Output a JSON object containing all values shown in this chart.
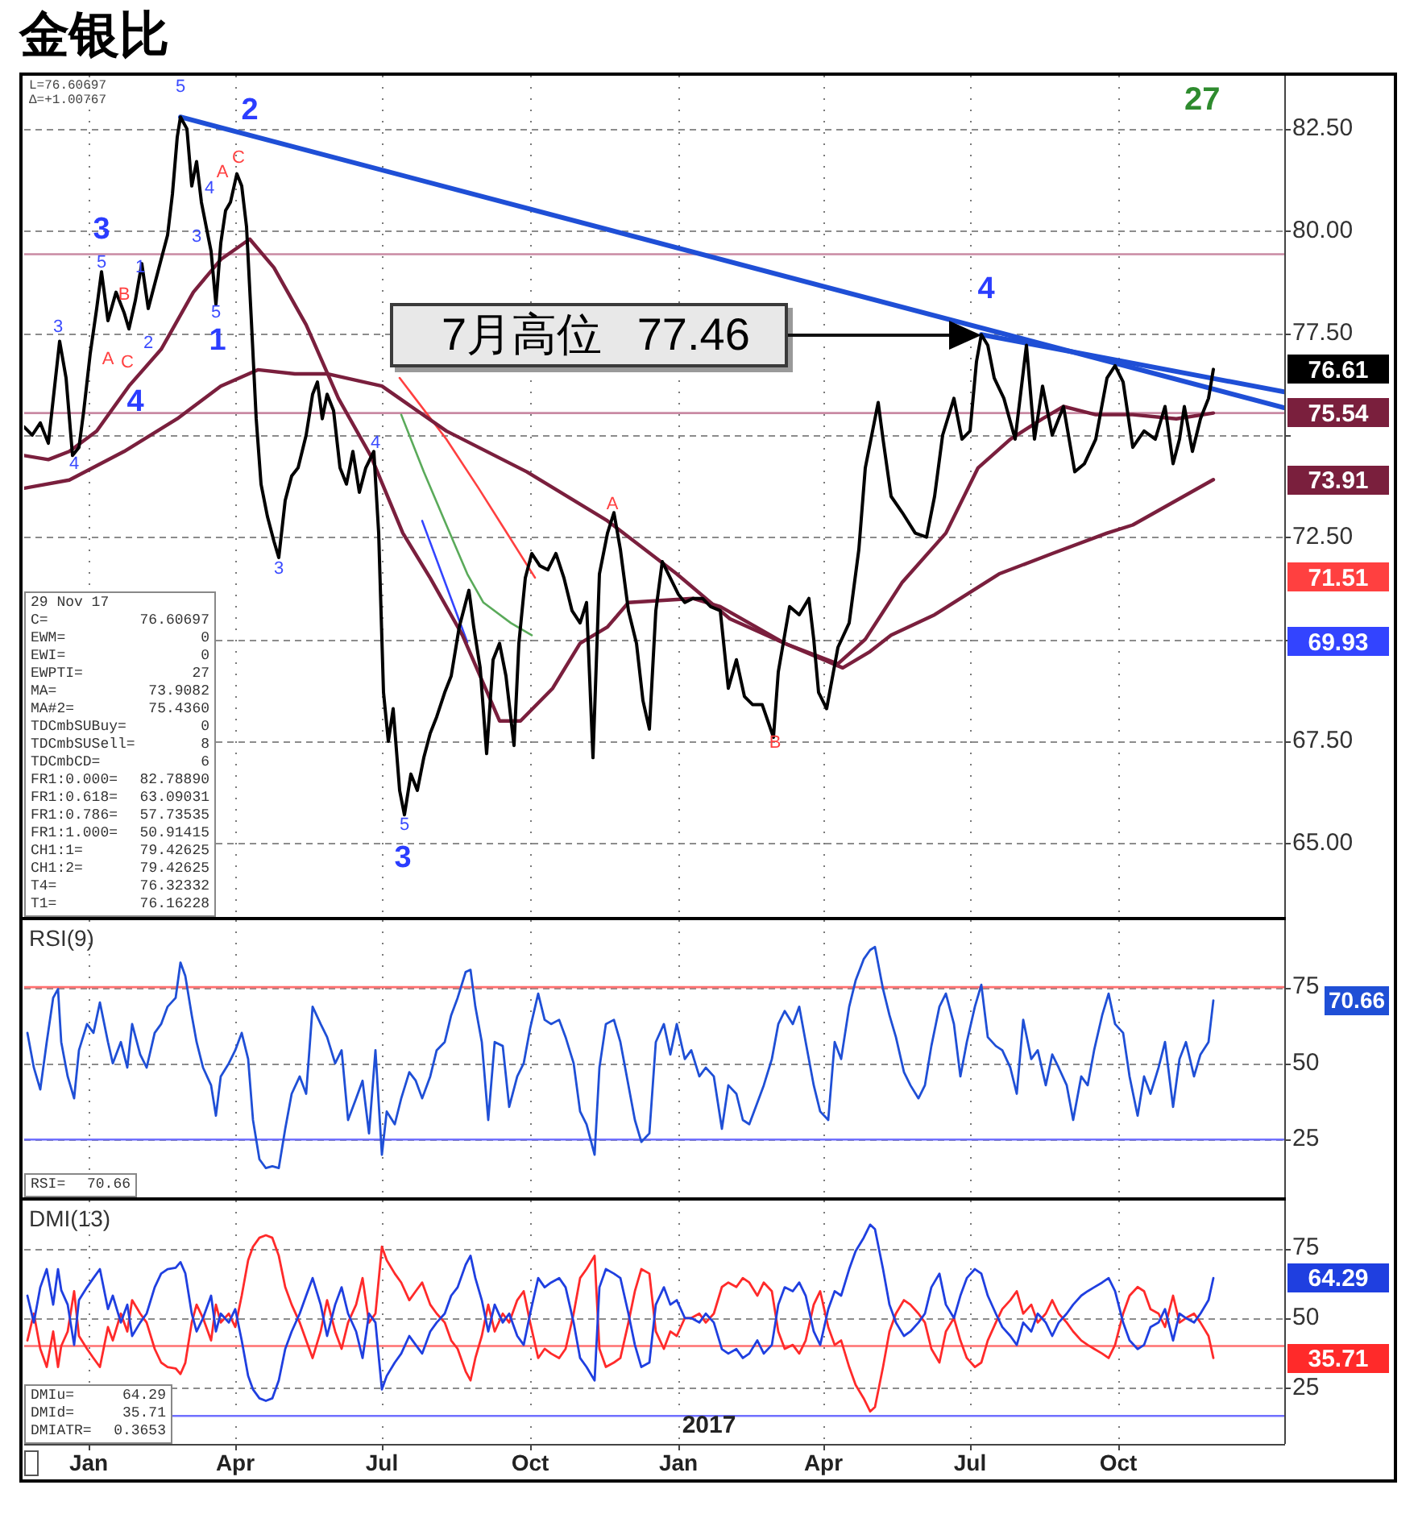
{
  "chart_data": [
    {
      "type": "line",
      "title": "金银比",
      "tick_labels": "y",
      "grid": true,
      "xlim": [
        "2015-11-22",
        "2018-01-12"
      ],
      "xticks": [
        {
          "value": "2016-01-01",
          "label": null
        },
        {
          "value": "2016-04-01",
          "label": null
        },
        {
          "value": "2016-07-01",
          "label": null
        },
        {
          "value": "2016-10-01",
          "label": null
        },
        {
          "value": "2017-01-01",
          "label": null
        },
        {
          "value": "2017-04-01",
          "label": null
        },
        {
          "value": "2017-07-01",
          "label": null
        },
        {
          "value": "2017-10-01",
          "label": null
        }
      ],
      "ylim": [
        63.2,
        83.8
      ],
      "yticks": [
        {
          "value": 65,
          "label": "65.00"
        },
        {
          "value": 67.5,
          "label": "67.50"
        },
        {
          "value": 70,
          "label": null
        },
        {
          "value": 72.5,
          "label": "72.50"
        },
        {
          "value": 75,
          "label": null
        },
        {
          "value": 77.5,
          "label": "77.50"
        },
        {
          "value": 80,
          "label": "80.00"
        },
        {
          "value": 82.5,
          "label": "82.50"
        }
      ],
      "series": [
        {
          "color": "#000000",
          "x": [
            "2015-11-22",
            "2015-11-27",
            "2015-12-02",
            "2015-12-07",
            "2015-12-14",
            "2015-12-18",
            "2015-12-22",
            "2015-12-26",
            "2015-12-29",
            "2016-01-02",
            "2016-01-06",
            "2016-01-09",
            "2016-01-13",
            "2016-01-18",
            "2016-01-23",
            "2016-01-26",
            "2016-01-30",
            "2016-02-03",
            "2016-02-07",
            "2016-02-11",
            "2016-02-15",
            "2016-02-19",
            "2016-02-22",
            "2016-02-25",
            "2016-02-27",
            "2016-03-02",
            "2016-03-05",
            "2016-03-08",
            "2016-03-11",
            "2016-03-14",
            "2016-03-17",
            "2016-03-20",
            "2016-03-23",
            "2016-03-26",
            "2016-03-29",
            "2016-04-02",
            "2016-04-05",
            "2016-04-08",
            "2016-04-11",
            "2016-04-14",
            "2016-04-17",
            "2016-04-21",
            "2016-04-25",
            "2016-04-28",
            "2016-05-02",
            "2016-05-06",
            "2016-05-10",
            "2016-05-15",
            "2016-05-19",
            "2016-05-22",
            "2016-05-25",
            "2016-05-28",
            "2016-06-01",
            "2016-06-05",
            "2016-06-09",
            "2016-06-13",
            "2016-06-17",
            "2016-06-21",
            "2016-06-26",
            "2016-06-29",
            "2016-07-02",
            "2016-07-05",
            "2016-07-08",
            "2016-07-12",
            "2016-07-15",
            "2016-07-19",
            "2016-07-23",
            "2016-07-27",
            "2016-07-31",
            "2016-08-04",
            "2016-08-09",
            "2016-08-13",
            "2016-08-18",
            "2016-08-24",
            "2016-08-27",
            "2016-08-31",
            "2016-09-04",
            "2016-09-08",
            "2016-09-12",
            "2016-09-16",
            "2016-09-21",
            "2016-09-24",
            "2016-09-28",
            "2016-10-02",
            "2016-10-07",
            "2016-10-12",
            "2016-10-17",
            "2016-10-22",
            "2016-10-27",
            "2016-11-01",
            "2016-11-05",
            "2016-11-09",
            "2016-11-13",
            "2016-11-18",
            "2016-11-22",
            "2016-11-26",
            "2016-12-01",
            "2016-12-06",
            "2016-12-10",
            "2016-12-14",
            "2016-12-18",
            "2016-12-22",
            "2016-12-27",
            "2017-01-01",
            "2017-01-05",
            "2017-01-10",
            "2017-01-16",
            "2017-01-21",
            "2017-01-27",
            "2017-02-01",
            "2017-02-06",
            "2017-02-11",
            "2017-02-16",
            "2017-02-22",
            "2017-03-01",
            "2017-03-04",
            "2017-03-11",
            "2017-03-17",
            "2017-03-23",
            "2017-03-26",
            "2017-03-29",
            "2017-04-03",
            "2017-04-10",
            "2017-04-17",
            "2017-04-23",
            "2017-04-27",
            "2017-05-01",
            "2017-05-05",
            "2017-05-08",
            "2017-05-13",
            "2017-05-20",
            "2017-05-28",
            "2017-06-04",
            "2017-06-09",
            "2017-06-14",
            "2017-06-21",
            "2017-06-26",
            "2017-07-01",
            "2017-07-05",
            "2017-07-08",
            "2017-07-12",
            "2017-07-16",
            "2017-07-22",
            "2017-07-29",
            "2017-08-05",
            "2017-08-10",
            "2017-08-15",
            "2017-08-21",
            "2017-08-28",
            "2017-09-04",
            "2017-09-10",
            "2017-09-17",
            "2017-09-24",
            "2017-09-29",
            "2017-10-04",
            "2017-10-10",
            "2017-10-17",
            "2017-10-24",
            "2017-10-30",
            "2017-11-04",
            "2017-11-08",
            "2017-11-11",
            "2017-11-16",
            "2017-11-21",
            "2017-11-26",
            "2017-11-29"
          ],
          "values": [
            75.2,
            75.0,
            75.3,
            74.8,
            77.3,
            76.4,
            74.5,
            74.7,
            75.6,
            77.0,
            78.1,
            79.0,
            77.8,
            78.5,
            78.0,
            77.6,
            78.3,
            79.2,
            78.1,
            78.7,
            79.3,
            79.9,
            80.9,
            82.3,
            82.79,
            82.5,
            81.1,
            81.7,
            80.7,
            80.1,
            79.5,
            78.2,
            79.7,
            80.5,
            80.7,
            81.4,
            81.1,
            80.1,
            77.8,
            75.4,
            73.8,
            73.0,
            72.4,
            72.0,
            73.4,
            74.0,
            74.2,
            75.0,
            76.0,
            76.3,
            75.4,
            76.0,
            75.6,
            74.2,
            73.8,
            74.6,
            73.6,
            74.2,
            74.6,
            72.6,
            68.7,
            67.5,
            68.3,
            66.3,
            65.7,
            66.7,
            66.3,
            67.1,
            67.7,
            68.1,
            68.7,
            69.1,
            70.3,
            71.2,
            70.3,
            69.3,
            67.2,
            69.5,
            69.9,
            69.1,
            67.4,
            69.9,
            71.5,
            72.1,
            71.8,
            71.7,
            72.1,
            71.5,
            70.7,
            70.4,
            70.9,
            67.1,
            71.6,
            72.6,
            73.1,
            72.2,
            70.7,
            69.9,
            68.5,
            67.8,
            70.7,
            71.9,
            71.5,
            71.1,
            70.9,
            71.0,
            71.0,
            70.8,
            70.7,
            68.8,
            69.5,
            68.6,
            68.4,
            68.4,
            67.6,
            69.2,
            70.8,
            70.6,
            71.0,
            70.0,
            68.7,
            68.3,
            69.8,
            70.4,
            72.2,
            74.2,
            75.0,
            75.8,
            74.9,
            73.5,
            73.1,
            72.6,
            72.5,
            73.5,
            75.0,
            75.9,
            74.9,
            75.1,
            76.8,
            77.46,
            77.2,
            76.4,
            75.9,
            74.9,
            77.2,
            74.9,
            76.2,
            75.0,
            75.7,
            74.1,
            74.3,
            74.9,
            76.4,
            76.7,
            76.3,
            74.7,
            75.1,
            74.9,
            75.7,
            74.3,
            74.9,
            75.7,
            74.6,
            75.4,
            75.9,
            76.61
          ]
        },
        {
          "color": "#7a1f3d",
          "x": [
            "2015-11-22",
            "2015-12-07",
            "2015-12-20",
            "2016-01-06",
            "2016-01-26",
            "2016-02-15",
            "2016-03-06",
            "2016-03-23",
            "2016-04-10",
            "2016-04-25",
            "2016-05-15",
            "2016-06-04",
            "2016-06-24",
            "2016-07-14",
            "2016-07-31",
            "2016-08-20",
            "2016-09-12",
            "2016-09-25",
            "2016-10-15",
            "2016-11-01",
            "2016-11-18",
            "2016-12-01",
            "2017-01-10",
            "2017-01-27",
            "2017-03-08",
            "2017-04-10",
            "2017-04-27",
            "2017-05-20",
            "2017-06-16",
            "2017-07-06",
            "2017-07-26",
            "2017-08-15",
            "2017-08-28",
            "2017-09-17",
            "2017-10-10",
            "2017-11-06",
            "2017-11-29"
          ],
          "values": [
            74.5,
            74.4,
            74.6,
            75.1,
            76.2,
            77.1,
            78.5,
            79.3,
            79.8,
            79.1,
            77.7,
            75.9,
            74.5,
            72.6,
            71.5,
            70.1,
            68.0,
            68.0,
            68.8,
            69.9,
            70.3,
            70.9,
            71.0,
            70.8,
            69.9,
            69.4,
            70.0,
            71.4,
            72.6,
            74.2,
            74.9,
            75.4,
            75.7,
            75.5,
            75.5,
            75.4,
            75.54
          ]
        },
        {
          "color": "#7a1f3d",
          "x": [
            "2015-11-22",
            "2015-12-20",
            "2016-01-23",
            "2016-02-25",
            "2016-03-23",
            "2016-04-15",
            "2016-05-08",
            "2016-05-28",
            "2016-07-01",
            "2016-08-10",
            "2016-09-29",
            "2016-11-18",
            "2016-12-31",
            "2017-02-02",
            "2017-03-08",
            "2017-04-13",
            "2017-04-30",
            "2017-05-13",
            "2017-06-09",
            "2017-07-19",
            "2017-08-21",
            "2017-09-24",
            "2017-10-10",
            "2017-11-29"
          ],
          "values": [
            73.7,
            73.9,
            74.6,
            75.4,
            76.2,
            76.6,
            76.5,
            76.5,
            76.2,
            75.1,
            74.1,
            72.9,
            71.6,
            70.5,
            69.9,
            69.3,
            69.7,
            70.1,
            70.6,
            71.6,
            72.1,
            72.6,
            72.8,
            73.91
          ]
        },
        {
          "color": "#ff4040",
          "x": [
            "2016-07-12",
            "2016-08-10",
            "2016-08-30",
            "2016-09-15",
            "2016-10-04"
          ],
          "values": [
            76.4,
            74.9,
            73.7,
            72.7,
            71.51
          ]
        },
        {
          "color": "#3344ff",
          "x": [
            "2016-07-26",
            "2016-08-23"
          ],
          "values": [
            72.9,
            69.93
          ]
        },
        {
          "color": "#5aaa5a",
          "x": [
            "2016-07-13",
            "2016-07-27",
            "2016-08-10",
            "2016-08-23",
            "2016-09-02",
            "2016-09-19",
            "2016-10-02"
          ],
          "values": [
            75.5,
            74.1,
            72.8,
            71.6,
            70.9,
            70.4,
            70.1
          ]
        },
        {
          "color": "#1f4fd6",
          "x": [
            "2016-02-27",
            "2018-01-12"
          ],
          "values": [
            82.79,
            75.67
          ]
        },
        {
          "color": "#1f4fd6",
          "x": [
            "2017-07-08",
            "2018-01-12"
          ],
          "values": [
            77.46,
            76.06
          ]
        }
      ],
      "ref_lines": [
        {
          "axis": "y",
          "value": 79.43,
          "color": "#c98aa3"
        },
        {
          "axis": "y",
          "value": 75.54,
          "color": "#c98aa3"
        }
      ],
      "annotations": [
        "L=76.60697",
        "Δ=+1.00767",
        "27",
        "29 Nov 17",
        "C= 76.60697",
        "EWM= 0",
        "EWI= 0",
        "EWPTI= 27",
        "MA= 73.9082",
        "MA#2= 75.4360",
        "TDCmbSUBuy= 0",
        "TDCmbSUSell= 8",
        "TDCmbCD= 6",
        "FR1:0.000= 82.78890",
        "FR1:0.618= 63.09031",
        "FR1:0.786= 57.73535",
        "FR1:1.000= 50.91415",
        "CH1:1= 79.42625",
        "CH1:2= 79.42625",
        "T4= 76.32332",
        "T1= 76.16228",
        "76.61",
        "75.54",
        "73.91",
        "71.51",
        "69.93",
        "3",
        "4",
        "2",
        "1",
        "3",
        "4",
        "A",
        "C",
        "B",
        "A",
        "C",
        "A",
        "B",
        "5",
        "1",
        "2",
        "3",
        "4",
        "5",
        "4",
        "3",
        "5",
        "3",
        "4",
        "5",
        "7月高位 77.46"
      ]
    },
    {
      "type": "line",
      "tick_labels": "y",
      "grid": true,
      "xlim": [
        "2015-11-22",
        "2018-01-12"
      ],
      "xticks": [
        {
          "value": "2016-01-01",
          "label": null
        },
        {
          "value": "2016-04-01",
          "label": null
        },
        {
          "value": "2016-07-01",
          "label": null
        },
        {
          "value": "2016-10-01",
          "label": null
        },
        {
          "value": "2017-01-01",
          "label": null
        },
        {
          "value": "2017-04-01",
          "label": null
        },
        {
          "value": "2017-07-01",
          "label": null
        },
        {
          "value": "2017-10-01",
          "label": null
        }
      ],
      "ylim": [
        6,
        97
      ],
      "yticks": [
        25,
        50,
        75
      ],
      "x": [
        "2015-11-24",
        "2015-11-28",
        "2015-12-02",
        "2015-12-06",
        "2015-12-10",
        "2015-12-13",
        "2015-12-15",
        "2015-12-19",
        "2015-12-23",
        "2015-12-26",
        "2015-12-31",
        "2016-01-04",
        "2016-01-08",
        "2016-01-13",
        "2016-01-16",
        "2016-01-21",
        "2016-01-25",
        "2016-01-28",
        "2016-02-02",
        "2016-02-06",
        "2016-02-11",
        "2016-02-15",
        "2016-02-19",
        "2016-02-24",
        "2016-02-27",
        "2016-03-01",
        "2016-03-05",
        "2016-03-08",
        "2016-03-12",
        "2016-03-17",
        "2016-03-20",
        "2016-03-23",
        "2016-03-28",
        "2016-04-01",
        "2016-04-05",
        "2016-04-09",
        "2016-04-12",
        "2016-04-16",
        "2016-04-20",
        "2016-04-24",
        "2016-04-28",
        "2016-05-02",
        "2016-05-06",
        "2016-05-11",
        "2016-05-15",
        "2016-05-19",
        "2016-05-24",
        "2016-05-28",
        "2016-06-02",
        "2016-06-06",
        "2016-06-10",
        "2016-06-15",
        "2016-06-19",
        "2016-06-23",
        "2016-06-27",
        "2016-07-01",
        "2016-07-04",
        "2016-07-09",
        "2016-07-13",
        "2016-07-18",
        "2016-07-22",
        "2016-07-26",
        "2016-07-31",
        "2016-08-04",
        "2016-08-09",
        "2016-08-13",
        "2016-08-17",
        "2016-08-22",
        "2016-08-25",
        "2016-08-28",
        "2016-09-01",
        "2016-09-05",
        "2016-09-09",
        "2016-09-14",
        "2016-09-18",
        "2016-09-23",
        "2016-09-27",
        "2016-10-01",
        "2016-10-06",
        "2016-10-10",
        "2016-10-14",
        "2016-10-19",
        "2016-10-23",
        "2016-10-28",
        "2016-11-01",
        "2016-11-05",
        "2016-11-10",
        "2016-11-13",
        "2016-11-17",
        "2016-11-22",
        "2016-11-26",
        "2016-12-01",
        "2016-12-05",
        "2016-12-09",
        "2016-12-14",
        "2016-12-18",
        "2016-12-23",
        "2016-12-27",
        "2016-12-31",
        "2017-01-05",
        "2017-01-09",
        "2017-01-14",
        "2017-01-18",
        "2017-01-23",
        "2017-01-28",
        "2017-02-01",
        "2017-02-06",
        "2017-02-10",
        "2017-02-14",
        "2017-02-19",
        "2017-02-23",
        "2017-02-28",
        "2017-03-04",
        "2017-03-08",
        "2017-03-13",
        "2017-03-17",
        "2017-03-21",
        "2017-03-26",
        "2017-03-30",
        "2017-04-04",
        "2017-04-08",
        "2017-04-12",
        "2017-04-17",
        "2017-04-21",
        "2017-04-26",
        "2017-04-30",
        "2017-05-03",
        "2017-05-08",
        "2017-05-12",
        "2017-05-16",
        "2017-05-21",
        "2017-05-25",
        "2017-05-30",
        "2017-06-03",
        "2017-06-07",
        "2017-06-12",
        "2017-06-16",
        "2017-06-21",
        "2017-06-25",
        "2017-06-29",
        "2017-07-04",
        "2017-07-08",
        "2017-07-12",
        "2017-07-17",
        "2017-07-21",
        "2017-07-26",
        "2017-07-30",
        "2017-08-03",
        "2017-08-08",
        "2017-08-12",
        "2017-08-17",
        "2017-08-21",
        "2017-08-25",
        "2017-08-30",
        "2017-09-03",
        "2017-09-08",
        "2017-09-12",
        "2017-09-16",
        "2017-09-21",
        "2017-09-25",
        "2017-09-29",
        "2017-10-04",
        "2017-10-08",
        "2017-10-13",
        "2017-10-17",
        "2017-10-21",
        "2017-10-26",
        "2017-10-30",
        "2017-11-04",
        "2017-11-08",
        "2017-11-12",
        "2017-11-17",
        "2017-11-21",
        "2017-11-26",
        "2017-11-29"
      ],
      "series": [
        {
          "color": "#1f4fd6",
          "values": [
            60,
            48.6,
            41.4,
            57,
            71.5,
            74.4,
            57,
            45.7,
            38.5,
            54.3,
            62.9,
            60,
            70,
            57,
            50,
            57,
            48.6,
            62.9,
            52.9,
            48.6,
            60,
            62.9,
            68.6,
            71.5,
            83.1,
            78.7,
            65.8,
            57,
            48.6,
            42.8,
            32.8,
            45.7,
            50,
            54.3,
            60,
            51.4,
            31.4,
            18.5,
            15.6,
            16.2,
            15.6,
            28.5,
            40,
            45.7,
            40,
            68.6,
            62.9,
            58.6,
            50,
            54.3,
            31.4,
            38.5,
            44.3,
            27,
            54.3,
            20,
            34.2,
            30,
            38.5,
            47.1,
            44.3,
            38.5,
            45.7,
            54.3,
            57,
            65.8,
            71.5,
            80,
            80.7,
            68.6,
            57,
            31.4,
            57,
            55.7,
            35.7,
            45.7,
            50,
            61.5,
            72.9,
            64.3,
            62.9,
            64.3,
            58.6,
            50,
            34.2,
            30,
            20,
            48.6,
            62.9,
            64.3,
            57,
            42.8,
            31.4,
            24.2,
            27,
            57,
            62.9,
            52.9,
            62.9,
            51.4,
            54.3,
            45.7,
            48.6,
            45.7,
            28.5,
            42.8,
            40,
            31.4,
            30,
            37.1,
            42.8,
            51.4,
            62.9,
            67.2,
            62.9,
            68.6,
            57,
            42.8,
            34.2,
            31.4,
            57,
            51.4,
            68.6,
            77.2,
            84.2,
            87.2,
            88.2,
            74.4,
            65.8,
            58.6,
            47.1,
            42.8,
            38.5,
            42.8,
            55.7,
            68.6,
            72.9,
            62.9,
            45.7,
            57,
            68.6,
            75.8,
            58.6,
            55.7,
            54.3,
            48.6,
            40,
            64.3,
            51.4,
            54.3,
            42.8,
            52.9,
            48.6,
            42.8,
            31.4,
            45.7,
            42.8,
            54.3,
            65.8,
            72.9,
            62.9,
            60,
            45.7,
            32.8,
            45.7,
            40,
            48.6,
            57,
            35.7,
            51.4,
            57,
            45.7,
            52.9,
            57,
            70.66
          ]
        }
      ],
      "ref_lines": [
        {
          "axis": "y",
          "value": 75,
          "color": "#ff7070"
        },
        {
          "axis": "y",
          "value": 25,
          "color": "#7070ff"
        }
      ],
      "annotations": [
        "RSI(9)",
        "RSI= 70.66",
        "70.66"
      ]
    },
    {
      "type": "line",
      "grid": true,
      "xlim": [
        "2015-11-22",
        "2018-01-12"
      ],
      "xticks": [
        {
          "value": "2016-01-01",
          "label": "Jan"
        },
        {
          "value": "2016-04-01",
          "label": "Apr"
        },
        {
          "value": "2016-07-01",
          "label": "Jul"
        },
        {
          "value": "2016-10-01",
          "label": "Oct"
        },
        {
          "value": "2017-01-01",
          "label": "Jan"
        },
        {
          "value": "2017-04-01",
          "label": "Apr"
        },
        {
          "value": "2017-07-01",
          "label": "Jul"
        },
        {
          "value": "2017-10-01",
          "label": "Oct"
        }
      ],
      "ylim": [
        5,
        92
      ],
      "yticks": [
        25,
        50,
        75
      ],
      "x": [
        "2015-11-24",
        "2015-11-28",
        "2015-12-02",
        "2015-12-06",
        "2015-12-10",
        "2015-12-13",
        "2015-12-15",
        "2015-12-19",
        "2015-12-23",
        "2015-12-26",
        "2015-12-31",
        "2016-01-04",
        "2016-01-08",
        "2016-01-13",
        "2016-01-16",
        "2016-01-21",
        "2016-01-25",
        "2016-01-28",
        "2016-02-02",
        "2016-02-06",
        "2016-02-11",
        "2016-02-15",
        "2016-02-19",
        "2016-02-24",
        "2016-02-27",
        "2016-03-01",
        "2016-03-05",
        "2016-03-08",
        "2016-03-12",
        "2016-03-17",
        "2016-03-20",
        "2016-03-23",
        "2016-03-28",
        "2016-04-01",
        "2016-04-05",
        "2016-04-09",
        "2016-04-12",
        "2016-04-16",
        "2016-04-20",
        "2016-04-24",
        "2016-04-28",
        "2016-05-02",
        "2016-05-06",
        "2016-05-11",
        "2016-05-15",
        "2016-05-19",
        "2016-05-24",
        "2016-05-28",
        "2016-06-02",
        "2016-06-06",
        "2016-06-10",
        "2016-06-15",
        "2016-06-19",
        "2016-06-23",
        "2016-06-27",
        "2016-07-01",
        "2016-07-04",
        "2016-07-09",
        "2016-07-13",
        "2016-07-18",
        "2016-07-22",
        "2016-07-26",
        "2016-07-31",
        "2016-08-04",
        "2016-08-09",
        "2016-08-13",
        "2016-08-17",
        "2016-08-22",
        "2016-08-25",
        "2016-08-28",
        "2016-09-01",
        "2016-09-05",
        "2016-09-09",
        "2016-09-14",
        "2016-09-18",
        "2016-09-23",
        "2016-09-27",
        "2016-10-01",
        "2016-10-06",
        "2016-10-10",
        "2016-10-14",
        "2016-10-19",
        "2016-10-23",
        "2016-10-28",
        "2016-11-01",
        "2016-11-05",
        "2016-11-10",
        "2016-11-13",
        "2016-11-17",
        "2016-11-22",
        "2016-11-26",
        "2016-12-01",
        "2016-12-05",
        "2016-12-09",
        "2016-12-14",
        "2016-12-18",
        "2016-12-23",
        "2016-12-27",
        "2016-12-31",
        "2017-01-05",
        "2017-01-09",
        "2017-01-14",
        "2017-01-18",
        "2017-01-23",
        "2017-01-28",
        "2017-02-01",
        "2017-02-06",
        "2017-02-10",
        "2017-02-14",
        "2017-02-19",
        "2017-02-23",
        "2017-02-28",
        "2017-03-04",
        "2017-03-08",
        "2017-03-13",
        "2017-03-17",
        "2017-03-21",
        "2017-03-26",
        "2017-03-30",
        "2017-04-04",
        "2017-04-08",
        "2017-04-12",
        "2017-04-17",
        "2017-04-21",
        "2017-04-26",
        "2017-04-30",
        "2017-05-03",
        "2017-05-08",
        "2017-05-12",
        "2017-05-16",
        "2017-05-21",
        "2017-05-25",
        "2017-05-30",
        "2017-06-03",
        "2017-06-07",
        "2017-06-12",
        "2017-06-16",
        "2017-06-21",
        "2017-06-25",
        "2017-06-29",
        "2017-07-04",
        "2017-07-08",
        "2017-07-12",
        "2017-07-17",
        "2017-07-21",
        "2017-07-26",
        "2017-07-30",
        "2017-08-03",
        "2017-08-08",
        "2017-08-12",
        "2017-08-17",
        "2017-08-21",
        "2017-08-25",
        "2017-08-30",
        "2017-09-03",
        "2017-09-08",
        "2017-09-12",
        "2017-09-16",
        "2017-09-21",
        "2017-09-25",
        "2017-09-29",
        "2017-10-04",
        "2017-10-08",
        "2017-10-13",
        "2017-10-17",
        "2017-10-21",
        "2017-10-26",
        "2017-10-30",
        "2017-11-04",
        "2017-11-08",
        "2017-11-12",
        "2017-11-17",
        "2017-11-21",
        "2017-11-26",
        "2017-11-29"
      ],
      "series": [
        {
          "color": "#1f3fe0",
          "values": [
            58,
            48.4,
            61,
            67.5,
            54.8,
            67.5,
            60,
            54.8,
            40.4,
            56.4,
            61,
            64.3,
            67.5,
            53.2,
            58,
            48.4,
            54.8,
            43.6,
            48.4,
            51.6,
            61,
            65.9,
            67.5,
            68,
            70,
            66,
            51.6,
            45.2,
            50,
            58,
            45.2,
            51.6,
            48.4,
            53.2,
            42,
            29.3,
            24.5,
            21.3,
            20.4,
            21.3,
            27.7,
            38.9,
            45.2,
            51.6,
            58,
            64.3,
            54.8,
            43.6,
            54.8,
            61,
            51.6,
            45.2,
            35.7,
            51.6,
            48.4,
            24.5,
            29.3,
            34.1,
            37.3,
            43.6,
            40.4,
            37.3,
            45.2,
            48.4,
            51.6,
            58,
            61,
            69.1,
            72.3,
            64.3,
            56.4,
            45.2,
            54.8,
            48.4,
            51.6,
            43.6,
            40.4,
            51.6,
            64.3,
            61,
            62.7,
            64.3,
            61,
            48.4,
            35.7,
            32.5,
            27.7,
            61,
            67.5,
            65.9,
            64.3,
            51.6,
            40.4,
            32.5,
            34.1,
            54.8,
            61,
            54.8,
            56.4,
            50,
            50,
            48.4,
            51.6,
            48.4,
            38.9,
            37.3,
            38.9,
            35.7,
            37.3,
            42,
            37.3,
            40.4,
            54.8,
            61,
            59.6,
            62.7,
            58,
            45.2,
            40.4,
            53.2,
            59.6,
            58,
            67.5,
            73.9,
            78.7,
            83.4,
            81.8,
            67.5,
            54.8,
            48.4,
            43.6,
            45.2,
            48.4,
            51.6,
            61,
            65.9,
            54.8,
            50,
            58,
            64.3,
            67.5,
            65.9,
            58,
            51.6,
            46.8,
            43.6,
            40.4,
            48.4,
            45.2,
            51.6,
            48.4,
            43.6,
            48.4,
            51.6,
            54.8,
            58,
            59.6,
            61,
            62.7,
            64.3,
            59.6,
            48.4,
            42,
            38.9,
            40.4,
            46.8,
            48.4,
            53.2,
            42,
            51.6,
            50,
            48.4,
            51.6,
            56.4,
            64.29
          ]
        },
        {
          "color": "#ff2a2a",
          "values": [
            42,
            51.6,
            39,
            32.5,
            45.2,
            32.5,
            40,
            45.2,
            59.6,
            43.6,
            39,
            35.7,
            32.5,
            46.8,
            42,
            51.6,
            45.2,
            56.4,
            51.6,
            48.4,
            39,
            34.1,
            32.5,
            32,
            30,
            34,
            48.4,
            54.8,
            50,
            42,
            54.8,
            48.4,
            51.6,
            46.8,
            58,
            70.7,
            75.5,
            78.7,
            79.6,
            78.7,
            72.3,
            61.1,
            54.8,
            48.4,
            42,
            35.7,
            45.2,
            56.4,
            45.2,
            39,
            48.4,
            54.8,
            64.3,
            48.4,
            51.6,
            75.5,
            70.7,
            65.9,
            62.7,
            56.4,
            59.6,
            62.7,
            54.8,
            51.6,
            48.4,
            42,
            39,
            30.9,
            27.7,
            35.7,
            43.6,
            54.8,
            45.2,
            51.6,
            48.4,
            56.4,
            59.6,
            48.4,
            35.7,
            39,
            37.3,
            35.7,
            39,
            51.6,
            64.3,
            67.5,
            72.3,
            39,
            32.5,
            34.1,
            35.7,
            48.4,
            59.6,
            67.5,
            65.9,
            45.2,
            39,
            45.2,
            43.6,
            50,
            50,
            51.6,
            48.4,
            51.6,
            61.1,
            62.7,
            61.1,
            64.3,
            62.7,
            58,
            62.7,
            59.6,
            45.2,
            39,
            40.4,
            37.3,
            42,
            54.8,
            59.6,
            46.8,
            40.4,
            42,
            32.5,
            26.1,
            21.3,
            16.6,
            18.2,
            32.5,
            45.2,
            51.6,
            56.4,
            54.8,
            51.6,
            48.4,
            39,
            34.1,
            45.2,
            50,
            42,
            35.7,
            32.5,
            34.1,
            42,
            48.4,
            53.2,
            56.4,
            59.6,
            51.6,
            54.8,
            48.4,
            51.6,
            56.4,
            51.6,
            48.4,
            45.2,
            42,
            40.4,
            39,
            37.3,
            35.7,
            40.4,
            51.6,
            58,
            61.1,
            59.6,
            53.2,
            51.6,
            46.8,
            58,
            48.4,
            50,
            51.6,
            48.4,
            43.6,
            35.71
          ]
        }
      ],
      "ref_lines": [
        {
          "axis": "y",
          "value": 40,
          "color": "#ff7070"
        },
        {
          "axis": "y",
          "value": 15,
          "color": "#7070ff"
        }
      ],
      "annotations": [
        "DMI(13)",
        "DMIu= 64.29",
        "DMId= 35.71",
        "DMIATR= 0.3653",
        "64.29",
        "35.71",
        "2017"
      ]
    }
  ]
}
